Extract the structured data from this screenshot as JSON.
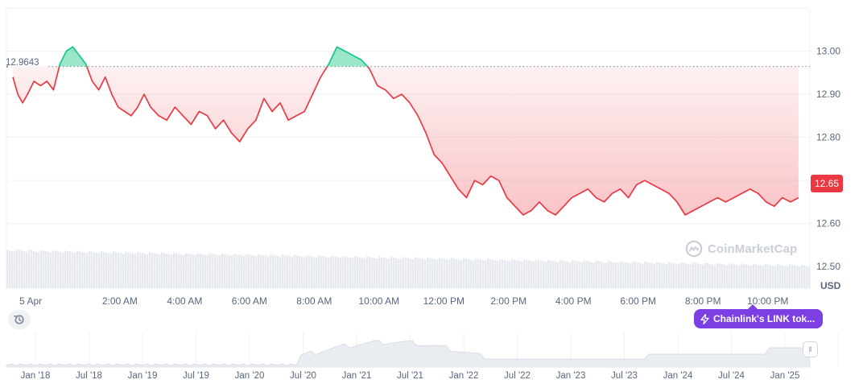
{
  "chart_data": {
    "type": "line",
    "title": "",
    "currency_label": "USD",
    "reference_value": 12.9643,
    "reference_label": "12.9643",
    "current_value": 12.65,
    "current_label": "12.65",
    "ylim": [
      12.45,
      13.1
    ],
    "y_ticks": [
      13.0,
      12.9,
      12.8,
      12.7,
      12.6,
      12.5
    ],
    "y_tick_labels": [
      "13.00",
      "12.90",
      "12.80",
      "12.70",
      "12.60",
      "12.50"
    ],
    "x_range_hours": [
      -1.5,
      23.3
    ],
    "x_ticks": [
      {
        "h": -0.75,
        "label": "5 Apr"
      },
      {
        "h": 2,
        "label": "2:00 AM"
      },
      {
        "h": 4,
        "label": "4:00 AM"
      },
      {
        "h": 6,
        "label": "6:00 AM"
      },
      {
        "h": 8,
        "label": "8:00 AM"
      },
      {
        "h": 10,
        "label": "10:00 AM"
      },
      {
        "h": 12,
        "label": "12:00 PM"
      },
      {
        "h": 14,
        "label": "2:00 PM"
      },
      {
        "h": 16,
        "label": "4:00 PM"
      },
      {
        "h": 18,
        "label": "6:00 PM"
      },
      {
        "h": 20,
        "label": "8:00 PM"
      },
      {
        "h": 22,
        "label": "10:00 PM"
      }
    ],
    "series": [
      {
        "x": [
          -1.3,
          -1.15,
          -1.0,
          -0.85,
          -0.65,
          -0.45,
          -0.25,
          -0.05,
          0.15,
          0.35,
          0.55,
          0.75,
          0.95,
          1.15,
          1.35,
          1.55,
          1.75,
          1.95,
          2.15,
          2.35,
          2.55,
          2.75,
          2.95,
          3.2,
          3.45,
          3.7,
          3.95,
          4.2,
          4.45,
          4.7,
          4.95,
          5.2,
          5.45,
          5.7,
          5.95,
          6.2,
          6.45,
          6.7,
          6.95,
          7.2,
          7.45,
          7.7,
          7.95,
          8.2,
          8.45,
          8.7,
          8.95,
          9.2,
          9.45,
          9.7,
          9.95,
          10.2,
          10.45,
          10.7,
          10.95,
          11.2,
          11.45,
          11.7,
          11.95,
          12.2,
          12.45,
          12.7,
          12.95,
          13.2,
          13.45,
          13.7,
          13.95,
          14.2,
          14.45,
          14.7,
          14.95,
          15.2,
          15.45,
          15.7,
          15.95,
          16.2,
          16.45,
          16.7,
          16.95,
          17.2,
          17.45,
          17.7,
          17.95,
          18.2,
          18.45,
          18.7,
          18.95,
          19.2,
          19.45,
          19.7,
          19.95,
          20.2,
          20.45,
          20.7,
          20.95,
          21.2,
          21.45,
          21.7,
          21.95,
          22.2,
          22.45,
          22.7,
          22.95
        ],
        "values": [
          12.94,
          12.9,
          12.88,
          12.9,
          12.93,
          12.92,
          12.93,
          12.91,
          12.97,
          13.0,
          13.01,
          12.99,
          12.97,
          12.93,
          12.91,
          12.94,
          12.9,
          12.87,
          12.86,
          12.85,
          12.87,
          12.9,
          12.87,
          12.85,
          12.84,
          12.87,
          12.85,
          12.83,
          12.86,
          12.85,
          12.82,
          12.84,
          12.81,
          12.79,
          12.82,
          12.84,
          12.89,
          12.86,
          12.88,
          12.84,
          12.85,
          12.86,
          12.9,
          12.94,
          12.97,
          13.01,
          13.0,
          12.99,
          12.98,
          12.96,
          12.92,
          12.91,
          12.89,
          12.9,
          12.88,
          12.85,
          12.81,
          12.76,
          12.74,
          12.71,
          12.68,
          12.66,
          12.7,
          12.69,
          12.71,
          12.7,
          12.66,
          12.64,
          12.62,
          12.63,
          12.65,
          12.63,
          12.62,
          12.64,
          12.66,
          12.67,
          12.68,
          12.66,
          12.65,
          12.67,
          12.68,
          12.66,
          12.69,
          12.7,
          12.69,
          12.68,
          12.67,
          12.65,
          12.62,
          12.63,
          12.64,
          12.65,
          12.66,
          12.65,
          12.66,
          12.67,
          12.68,
          12.67,
          12.65,
          12.64,
          12.66,
          12.65,
          12.66
        ]
      }
    ],
    "volume_label": "",
    "overview_x_labels": [
      "Jan '18",
      "Jul '18",
      "Jan '19",
      "Jul '19",
      "Jan '20",
      "Jul '20",
      "Jan '21",
      "Jul '21",
      "Jan '22",
      "Jul '22",
      "Jan '23",
      "Jul '23",
      "Jan '24",
      "Jul '24",
      "Jan '25"
    ],
    "grid": true
  },
  "watermark": {
    "text": "CoinMarketCap"
  },
  "annotation": {
    "label": "Chainlink's LINK tok..."
  },
  "colors": {
    "up": "#16c784",
    "down": "#ea3943",
    "annotation": "#7b3fe4",
    "grid": "#eff2f5",
    "text": "#58667e"
  },
  "icons": {
    "history": "history-icon",
    "annotation": "lightning-icon",
    "handle": "drag-handle-icon"
  }
}
